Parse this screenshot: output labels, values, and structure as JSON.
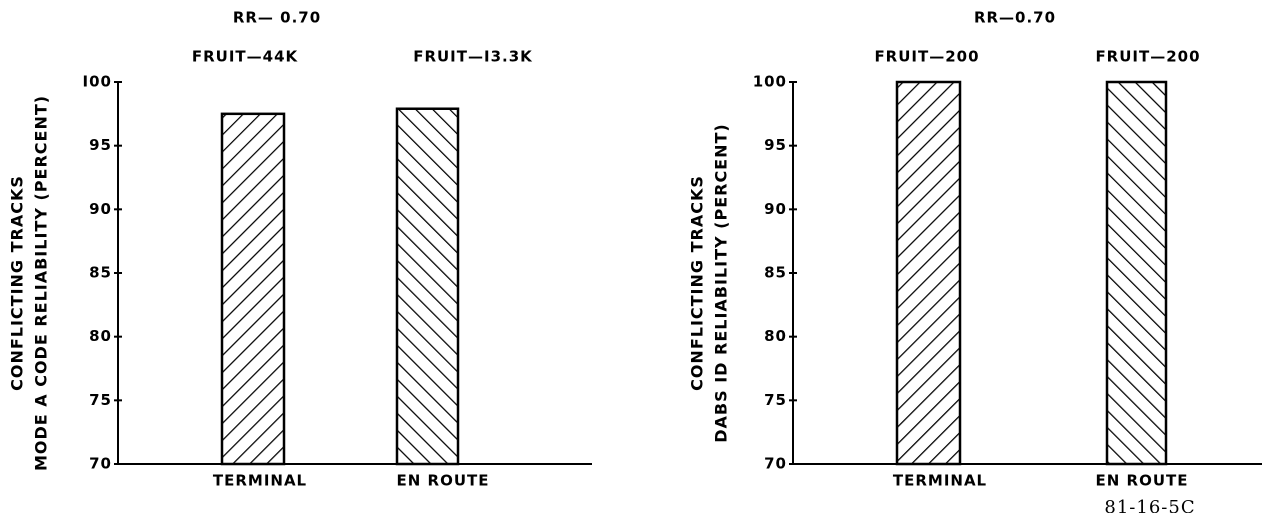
{
  "chart_data": [
    {
      "type": "bar",
      "title": "RR— 0.70",
      "y_label": [
        "CONFLICTING TRACKS",
        "MODE A CODE RELIABILITY (PERCENT)"
      ],
      "categories": [
        "TERMINAL",
        "EN ROUTE"
      ],
      "values": [
        97.5,
        97.9
      ],
      "annotations": [
        "FRUIT—44K",
        "FRUIT—I3.3K"
      ],
      "color": "#000000",
      "ylim": [
        70,
        100
      ],
      "yticks": [
        70,
        75,
        80,
        85,
        90,
        95,
        {
          "value": 100,
          "label": "I00"
        }
      ]
    },
    {
      "type": "bar",
      "title": "RR—0.70",
      "y_label": [
        "CONFLICTING TRACKS",
        "DABS ID RELIABILITY (PERCENT)"
      ],
      "categories": [
        "TERMINAL",
        "EN ROUTE"
      ],
      "values": [
        100,
        100
      ],
      "annotations": [
        "FRUIT—200",
        "FRUIT—200"
      ],
      "color": "#000000",
      "ylim": [
        70,
        100
      ],
      "yticks": [
        70,
        75,
        80,
        85,
        90,
        95,
        100
      ]
    }
  ],
  "figure_id": "81-16-5C"
}
